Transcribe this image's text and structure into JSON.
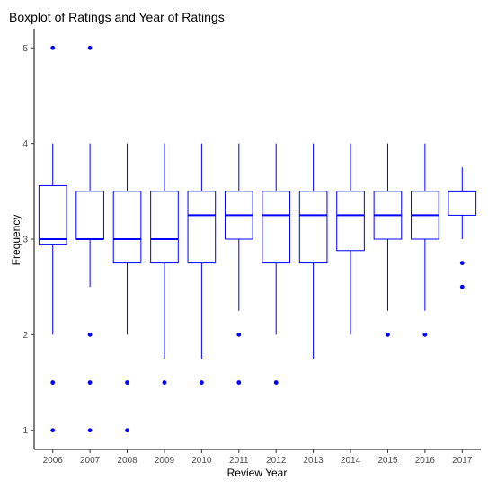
{
  "chart_data": {
    "type": "boxplot",
    "title": "Boxplot of Ratings and Year of Ratings",
    "xlabel": "Review Year",
    "ylabel": "Frequency",
    "ylim": [
      0.8,
      5.2
    ],
    "yticks": [
      1,
      2,
      3,
      4,
      5
    ],
    "grid": false,
    "color": "#0000ff",
    "categories": [
      "2006",
      "2007",
      "2008",
      "2009",
      "2010",
      "2011",
      "2012",
      "2013",
      "2014",
      "2015",
      "2016",
      "2017"
    ],
    "boxes": [
      {
        "year": "2006",
        "whisker_low": 2.0,
        "q1": 2.94,
        "median": 3.0,
        "q3": 3.56,
        "whisker_high": 4.0,
        "outliers": [
          5.0,
          1.5,
          1.0
        ]
      },
      {
        "year": "2007",
        "whisker_low": 2.5,
        "q1": 3.0,
        "median": 3.0,
        "q3": 3.5,
        "whisker_high": 4.0,
        "outliers": [
          5.0,
          2.0,
          1.5,
          1.0
        ]
      },
      {
        "year": "2008",
        "whisker_low": 2.0,
        "q1": 2.75,
        "median": 3.0,
        "q3": 3.5,
        "whisker_high": 4.0,
        "outliers": [
          1.5,
          1.0
        ]
      },
      {
        "year": "2009",
        "whisker_low": 1.75,
        "q1": 2.75,
        "median": 3.0,
        "q3": 3.5,
        "whisker_high": 4.0,
        "outliers": [
          1.5
        ]
      },
      {
        "year": "2010",
        "whisker_low": 1.75,
        "q1": 2.75,
        "median": 3.25,
        "q3": 3.5,
        "whisker_high": 4.0,
        "outliers": [
          1.5
        ]
      },
      {
        "year": "2011",
        "whisker_low": 2.25,
        "q1": 3.0,
        "median": 3.25,
        "q3": 3.5,
        "whisker_high": 4.0,
        "outliers": [
          2.0,
          1.5
        ]
      },
      {
        "year": "2012",
        "whisker_low": 2.0,
        "q1": 2.75,
        "median": 3.25,
        "q3": 3.5,
        "whisker_high": 4.0,
        "outliers": [
          1.5
        ]
      },
      {
        "year": "2013",
        "whisker_low": 1.75,
        "q1": 2.75,
        "median": 3.25,
        "q3": 3.5,
        "whisker_high": 4.0,
        "outliers": []
      },
      {
        "year": "2014",
        "whisker_low": 2.0,
        "q1": 2.88,
        "median": 3.25,
        "q3": 3.5,
        "whisker_high": 4.0,
        "outliers": []
      },
      {
        "year": "2015",
        "whisker_low": 2.25,
        "q1": 3.0,
        "median": 3.25,
        "q3": 3.5,
        "whisker_high": 4.0,
        "outliers": [
          2.0
        ]
      },
      {
        "year": "2016",
        "whisker_low": 2.25,
        "q1": 3.0,
        "median": 3.25,
        "q3": 3.5,
        "whisker_high": 4.0,
        "outliers": [
          2.0
        ]
      },
      {
        "year": "2017",
        "whisker_low": 3.0,
        "q1": 3.25,
        "median": 3.5,
        "q3": 3.5,
        "whisker_high": 3.75,
        "outliers": [
          2.75,
          2.5
        ]
      }
    ]
  }
}
